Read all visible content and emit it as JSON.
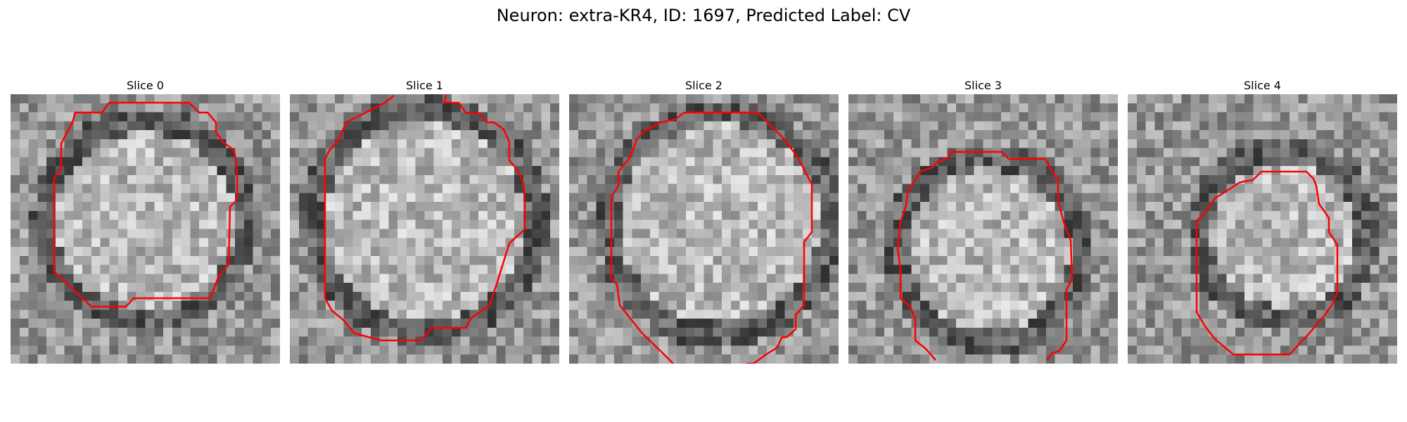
{
  "figure": {
    "title": "Neuron: extra-KR4, ID: 1697, Predicted Label: CV",
    "contour_color": "#ff0000"
  },
  "panels": [
    {
      "title": "Slice 0"
    },
    {
      "title": "Slice 1"
    },
    {
      "title": "Slice 2"
    },
    {
      "title": "Slice 3"
    },
    {
      "title": "Slice 4"
    }
  ]
}
